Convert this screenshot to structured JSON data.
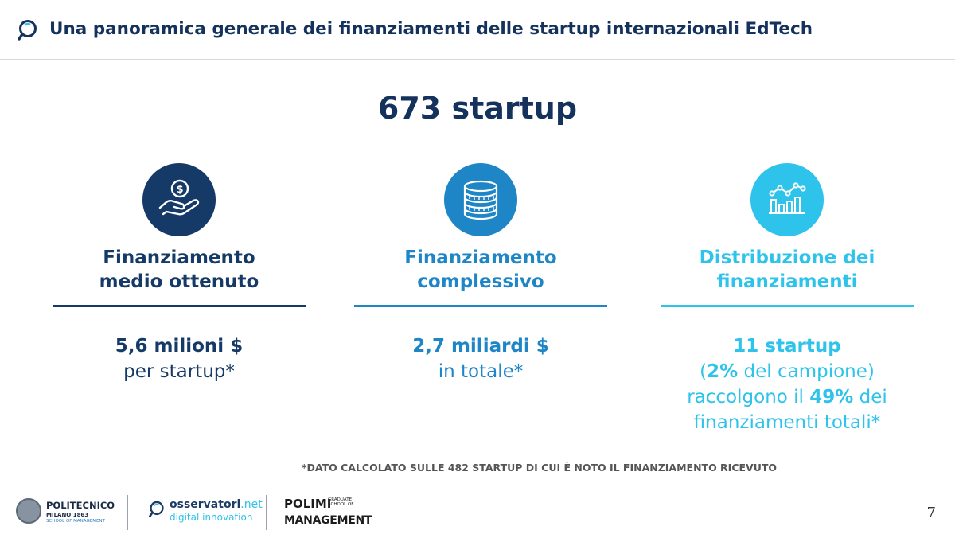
{
  "header": {
    "title": "Una panoramica generale dei finanziamenti delle startup internazionali EdTech",
    "icon": "magnifier-icon"
  },
  "main_title": "673 startup",
  "columns": [
    {
      "icon": "hand-coin-icon",
      "heading_line1": "Finanziamento",
      "heading_line2": "medio ottenuto",
      "value": "5,6 milioni $",
      "caption": "per startup*",
      "color": "#163a67"
    },
    {
      "icon": "coins-stack-icon",
      "heading_line1": "Finanziamento",
      "heading_line2": "complessivo",
      "value": "2,7 miliardi $",
      "caption": "in totale*",
      "color": "#1e85c6"
    },
    {
      "icon": "bar-line-chart-icon",
      "heading_line1": "Distribuzione dei",
      "heading_line2": "finanziamenti",
      "value": "11 startup",
      "line2_open": "(",
      "line2_strong": "2%",
      "line2_rest": " del campione)",
      "line3_pre": "raccolgono il ",
      "line3_strong": "49%",
      "line3_post": " dei",
      "line4": "finanziamenti totali*",
      "color": "#2ec3ea"
    }
  ],
  "footnote": "*DATO CALCOLATO SULLE 482 STARTUP DI CUI È NOTO IL FINANZIAMENTO RICEVUTO",
  "footer": {
    "logo1_name": "POLITECNICO",
    "logo1_sub": "MILANO 1863",
    "logo1_sub2": "SCHOOL OF MANAGEMENT",
    "logo2_main": "osservatori",
    "logo2_net": ".net",
    "logo2_sub": "digital innovation",
    "logo3_main": "POLIMI",
    "logo3_side": "GRADUATE SCHOOL OF",
    "logo3_bottom": "MANAGEMENT",
    "page_number": "7"
  }
}
